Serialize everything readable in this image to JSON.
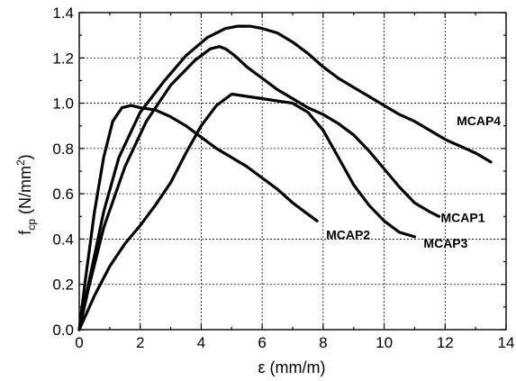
{
  "chart_data": {
    "type": "line",
    "xlabel": "ε (mm/m)",
    "ylabel_main": "f",
    "ylabel_sub": "cp",
    "ylabel_unit_pre": " (N/mm",
    "ylabel_unit_sup": "2",
    "ylabel_unit_post": ")",
    "xlim": [
      0,
      14
    ],
    "ylim": [
      0,
      1.4
    ],
    "xticks": [
      0,
      2,
      4,
      6,
      8,
      10,
      12,
      14
    ],
    "yticks": [
      0.0,
      0.2,
      0.4,
      0.6,
      0.8,
      1.0,
      1.2,
      1.4
    ],
    "ytick_labels": [
      "0.0",
      "0.2",
      "0.4",
      "0.6",
      "0.8",
      "1.0",
      "1.2",
      "1.4"
    ],
    "grid": true,
    "series": [
      {
        "name": "MCAP1",
        "x": [
          0,
          0.3,
          0.8,
          1.5,
          2.2,
          3.0,
          3.8,
          4.3,
          4.6,
          4.8,
          5.1,
          5.5,
          6.0,
          6.5,
          7.0,
          7.5,
          8.0,
          8.5,
          9.0,
          9.5,
          10.0,
          10.5,
          11.0,
          11.5,
          11.8
        ],
        "y": [
          0,
          0.18,
          0.45,
          0.72,
          0.92,
          1.08,
          1.19,
          1.24,
          1.25,
          1.24,
          1.21,
          1.16,
          1.11,
          1.06,
          1.02,
          0.98,
          0.95,
          0.91,
          0.86,
          0.79,
          0.71,
          0.63,
          0.56,
          0.52,
          0.5
        ]
      },
      {
        "name": "MCAP2",
        "x": [
          0,
          0.2,
          0.5,
          0.8,
          1.1,
          1.4,
          1.7,
          2.0,
          2.5,
          3.0,
          3.5,
          4.0,
          4.5,
          5.0,
          5.5,
          6.0,
          6.5,
          7.0,
          7.5,
          7.8
        ],
        "y": [
          0,
          0.22,
          0.52,
          0.76,
          0.92,
          0.98,
          0.99,
          0.98,
          0.97,
          0.94,
          0.9,
          0.85,
          0.8,
          0.76,
          0.72,
          0.67,
          0.62,
          0.56,
          0.51,
          0.48
        ]
      },
      {
        "name": "MCAP3",
        "x": [
          0,
          0.5,
          1.0,
          1.5,
          2.0,
          2.5,
          3.0,
          3.5,
          4.0,
          4.5,
          5.0,
          5.5,
          6.0,
          6.5,
          7.0,
          7.5,
          8.0,
          8.5,
          9.0,
          9.5,
          10.0,
          10.5,
          11.0
        ],
        "y": [
          0,
          0.15,
          0.28,
          0.38,
          0.46,
          0.55,
          0.65,
          0.78,
          0.9,
          0.99,
          1.04,
          1.03,
          1.02,
          1.01,
          1.0,
          0.96,
          0.88,
          0.76,
          0.64,
          0.55,
          0.48,
          0.43,
          0.41
        ]
      },
      {
        "name": "MCAP4",
        "x": [
          0,
          0.3,
          0.8,
          1.3,
          2.0,
          2.8,
          3.5,
          4.2,
          4.8,
          5.2,
          5.6,
          6.0,
          6.5,
          7.0,
          7.5,
          8.0,
          8.5,
          9.0,
          9.5,
          10.0,
          10.5,
          11.0,
          11.5,
          12.0,
          12.5,
          13.0,
          13.5
        ],
        "y": [
          0,
          0.2,
          0.52,
          0.76,
          0.96,
          1.1,
          1.21,
          1.29,
          1.33,
          1.34,
          1.34,
          1.33,
          1.31,
          1.27,
          1.22,
          1.16,
          1.11,
          1.07,
          1.03,
          0.99,
          0.95,
          0.92,
          0.88,
          0.84,
          0.81,
          0.78,
          0.74
        ]
      }
    ]
  }
}
